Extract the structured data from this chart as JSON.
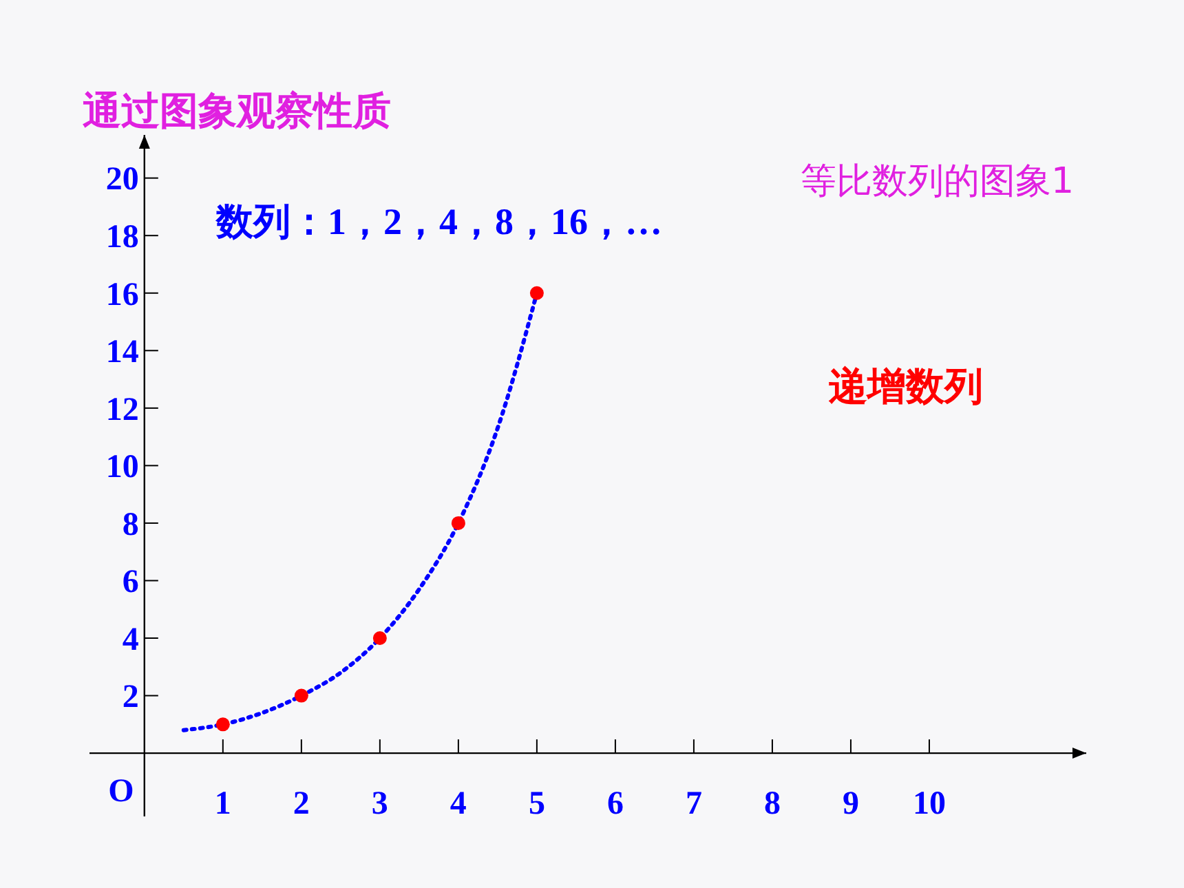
{
  "chart_data": {
    "type": "scatter",
    "title": "通过图象观察性质",
    "xlim": [
      -0.7,
      12
    ],
    "ylim": [
      -2.2,
      21.5
    ],
    "xticks": [
      1,
      2,
      3,
      4,
      5,
      6,
      7,
      8,
      9,
      10
    ],
    "yticks": [
      2,
      4,
      6,
      8,
      10,
      12,
      14,
      16,
      18,
      20
    ],
    "grid": false,
    "annotations": [
      "O",
      "等比数列的图象1",
      "数列：1，2，4，8，16，…",
      "递增数列"
    ],
    "series": [
      {
        "type": "line",
        "color": "#0000ff",
        "line_style": "dotted",
        "marker": "none",
        "x": [
          0.5,
          1,
          1.5,
          2,
          2.5,
          3,
          3.5,
          4,
          4.5,
          5
        ],
        "values": [
          0.8,
          1,
          1.4,
          2,
          2.8,
          4,
          5.7,
          8,
          11.3,
          16
        ]
      },
      {
        "color": "#ff0000",
        "marker": "circle",
        "x": [
          1,
          2,
          3,
          4,
          5
        ],
        "values": [
          1,
          2,
          4,
          8,
          16
        ]
      }
    ]
  }
}
